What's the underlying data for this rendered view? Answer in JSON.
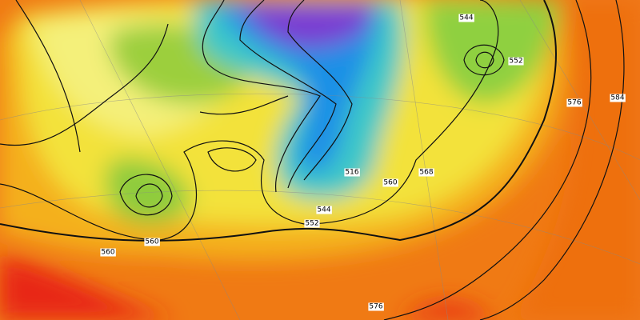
{
  "map": {
    "contour_labels": [
      "552",
      "560",
      "544",
      "516",
      "560",
      "568",
      "552",
      "544",
      "576",
      "584",
      "576",
      "560"
    ]
  }
}
